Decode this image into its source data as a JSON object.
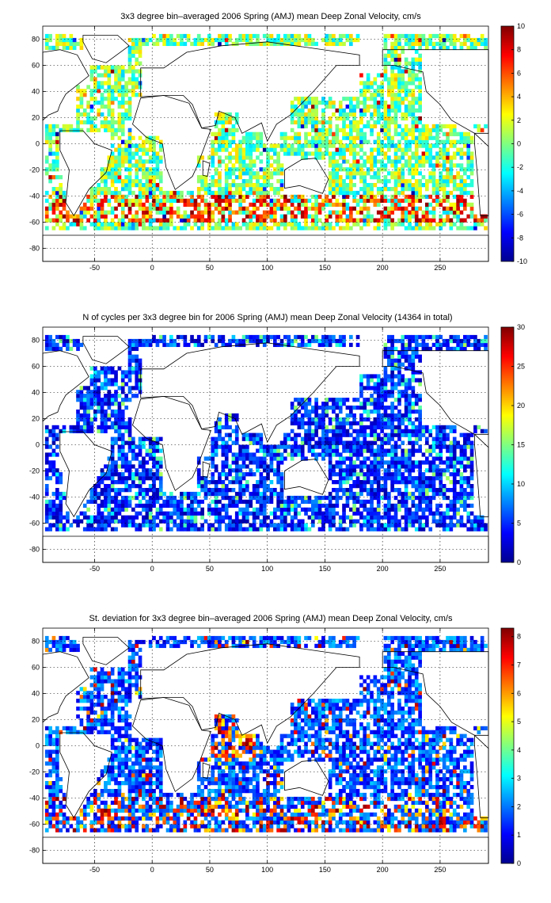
{
  "chart_data": [
    {
      "type": "heatmap",
      "title": "3x3 degree bin–averaged 2006 Spring (AMJ) mean Deep Zonal Velocity, cm/s",
      "xlabel": "",
      "ylabel": "",
      "xlim": [
        -95,
        292
      ],
      "ylim": [
        -90,
        90
      ],
      "xticks": [
        "-50",
        "0",
        "50",
        "100",
        "150",
        "200",
        "250"
      ],
      "yticks": [
        "80",
        "60",
        "40",
        "20",
        "0",
        "-20",
        "-40",
        "-60",
        "-80"
      ],
      "colorbar": {
        "min": -10,
        "max": 10,
        "ticks": [
          "10",
          "8",
          "6",
          "4",
          "2",
          "0",
          "-2",
          "-4",
          "-6",
          "-8",
          "-10"
        ]
      },
      "colormap": "jet",
      "grid": true,
      "bin_size_deg": 3,
      "pattern": "mostly near-zero values over ocean basins; strong positive (red) band along the Antarctic Circumpolar Current near 45-60S"
    },
    {
      "type": "heatmap",
      "title": "N of cycles per 3x3 degree bin for 2006 Spring (AMJ) mean Deep Zonal Velocity (14364 in total)",
      "xlabel": "",
      "ylabel": "",
      "xlim": [
        -95,
        292
      ],
      "ylim": [
        -90,
        90
      ],
      "xticks": [
        "-50",
        "0",
        "50",
        "100",
        "150",
        "200",
        "250"
      ],
      "yticks": [
        "80",
        "60",
        "40",
        "20",
        "0",
        "-20",
        "-40",
        "-60",
        "-80"
      ],
      "colorbar": {
        "min": 0,
        "max": 30,
        "ticks": [
          "30",
          "25",
          "20",
          "15",
          "10",
          "5",
          "0"
        ]
      },
      "colormap": "jet",
      "grid": true,
      "bin_size_deg": 3,
      "total_cycles": 14364,
      "pattern": "mostly low counts (1-8 cycles) with scattered higher values"
    },
    {
      "type": "heatmap",
      "title": "St. deviation for 3x3 degree bin–averaged 2006 Spring (AMJ) mean Deep Zonal Velocity, cm/s",
      "xlabel": "",
      "ylabel": "",
      "xlim": [
        -95,
        292
      ],
      "ylim": [
        -90,
        90
      ],
      "xticks": [
        "-50",
        "0",
        "50",
        "100",
        "150",
        "200",
        "250"
      ],
      "yticks": [
        "80",
        "60",
        "40",
        "20",
        "0",
        "-20",
        "-40",
        "-60",
        "-80"
      ],
      "colorbar": {
        "min": 0,
        "max": 8.3,
        "ticks": [
          "8",
          "7",
          "6",
          "5",
          "4",
          "3",
          "2",
          "1",
          "0"
        ]
      },
      "colormap": "jet",
      "grid": true,
      "bin_size_deg": 3,
      "pattern": "low standard deviation in most bins; high values in western Indian Ocean, Agulhas region and Southern Ocean"
    }
  ],
  "colors": {
    "frame": "#000000",
    "background": "#ffffff",
    "coastline": "#000000"
  }
}
